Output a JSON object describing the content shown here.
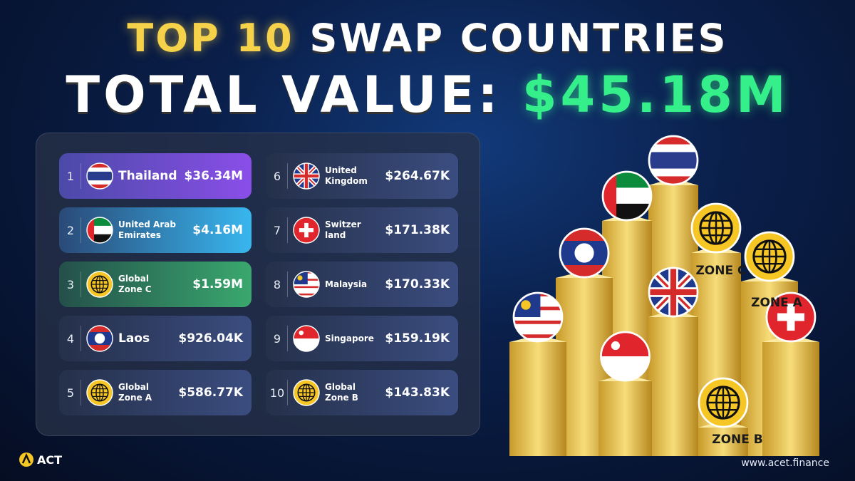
{
  "header": {
    "title_highlight": "TOP 10",
    "title_rest": "SWAP COUNTRIES",
    "total_label": "TOTAL VALUE:",
    "total_value": "$45.18M"
  },
  "list": [
    {
      "rank": 1,
      "name": "Thailand",
      "value": "$36.34M"
    },
    {
      "rank": 2,
      "name": "United Arab\nEmirates",
      "value": "$4.16M"
    },
    {
      "rank": 3,
      "name": "Global\nZone C",
      "value": "$1.59M"
    },
    {
      "rank": 4,
      "name": "Laos",
      "value": "$926.04K"
    },
    {
      "rank": 5,
      "name": "Global\nZone A",
      "value": "$586.77K"
    },
    {
      "rank": 6,
      "name": "United\nKingdom",
      "value": "$264.67K"
    },
    {
      "rank": 7,
      "name": "Switzer\nland",
      "value": "$171.38K"
    },
    {
      "rank": 8,
      "name": "Malaysia",
      "value": "$170.33K"
    },
    {
      "rank": 9,
      "name": "Singapore",
      "value": "$159.19K"
    },
    {
      "rank": 10,
      "name": "Global\nZone B",
      "value": "$143.83K"
    }
  ],
  "pillar_labels": {
    "zone_c": "ZONE C",
    "zone_a": "ZONE A",
    "zone_b": "ZONE B"
  },
  "footer": {
    "logo": "ACT",
    "website": "www.acet.finance"
  }
}
